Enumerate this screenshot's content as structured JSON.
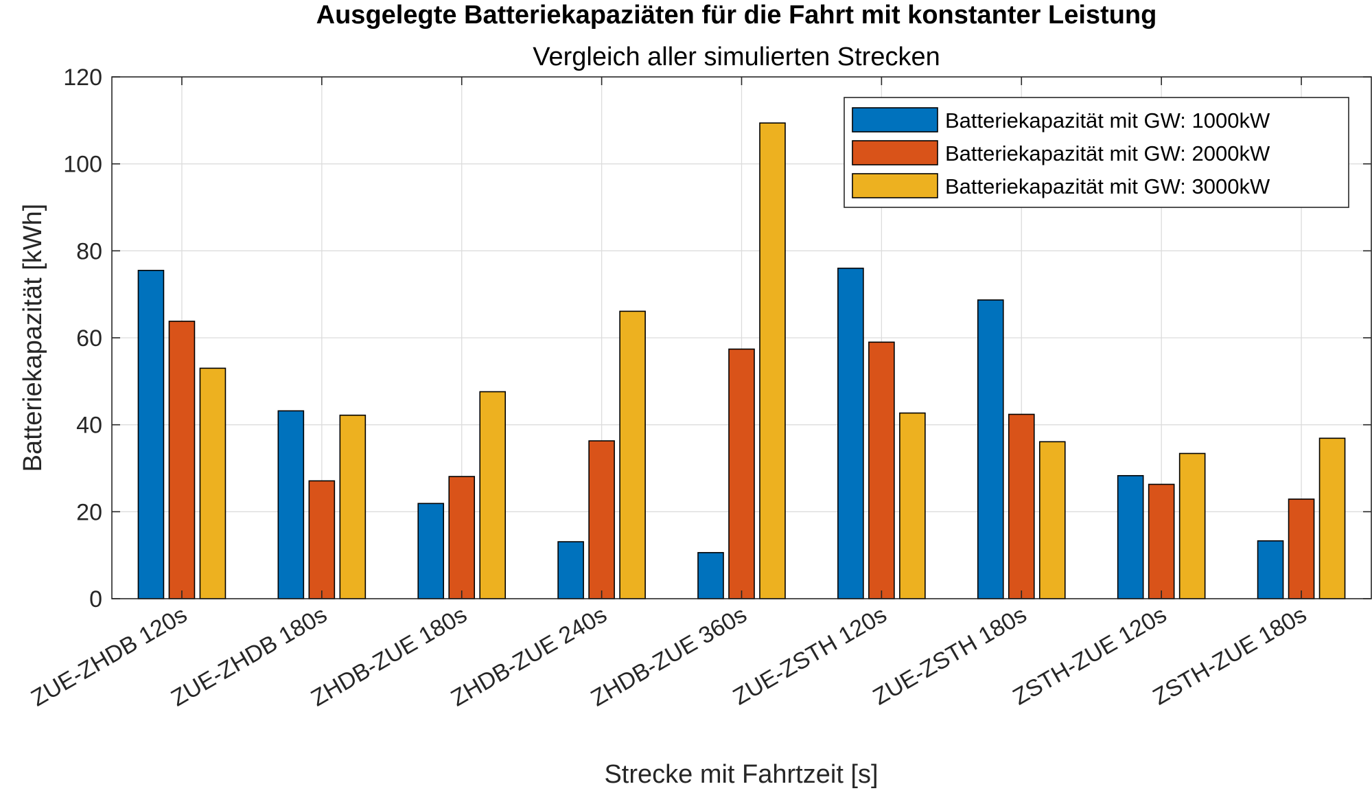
{
  "chart_data": {
    "type": "bar",
    "title": "Ausgelegte Batteriekapaziäten für die Fahrt mit konstanter Leistung",
    "subtitle": "Vergleich aller simulierten Strecken",
    "xlabel": "Strecke mit Fahrtzeit [s]",
    "ylabel": "Batteriekapazität [kWh]",
    "ylim": [
      0,
      120
    ],
    "yticks": [
      "0",
      "20",
      "40",
      "60",
      "80",
      "100",
      "120"
    ],
    "grid": true,
    "legend_position": "top-right",
    "categories": [
      "ZUE-ZHDB 120s",
      "ZUE-ZHDB 180s",
      "ZHDB-ZUE 180s",
      "ZHDB-ZUE 240s",
      "ZHDB-ZUE 360s",
      "ZUE-ZSTH 120s",
      "ZUE-ZSTH 180s",
      "ZSTH-ZUE 120s",
      "ZSTH-ZUE 180s"
    ],
    "series": [
      {
        "name": "Batteriekapazität mit GW: 1000kW",
        "color": "#0072BD",
        "values": [
          75.5,
          43.2,
          21.9,
          13.1,
          10.6,
          76.0,
          68.7,
          28.3,
          13.3
        ]
      },
      {
        "name": "Batteriekapazität mit GW: 2000kW",
        "color": "#D95319",
        "values": [
          63.8,
          27.1,
          28.1,
          36.3,
          57.4,
          59.0,
          42.4,
          26.3,
          22.9
        ]
      },
      {
        "name": "Batteriekapazität mit GW: 3000kW",
        "color": "#EDB120",
        "values": [
          53.0,
          42.2,
          47.6,
          66.1,
          109.4,
          42.7,
          36.1,
          33.4,
          36.9
        ]
      }
    ]
  }
}
